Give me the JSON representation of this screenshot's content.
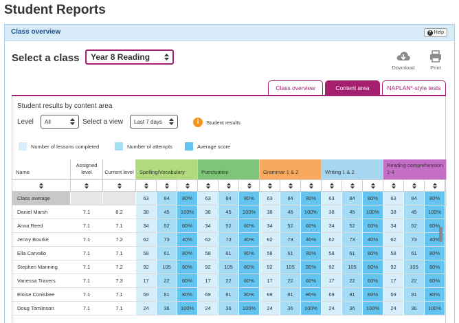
{
  "page": {
    "title": "Student Reports"
  },
  "panel": {
    "title": "Class overview",
    "help_label": "Help"
  },
  "class_picker": {
    "label": "Select a class",
    "value": "Year 8 Reading"
  },
  "tools": {
    "download_label": "Download",
    "print_label": "Print"
  },
  "tabs": [
    {
      "label": "Class overview",
      "active": false
    },
    {
      "label": "Content area",
      "active": true
    },
    {
      "label": "NAPLAN*-style tests",
      "active": false
    }
  ],
  "results": {
    "title": "Student results by content area",
    "level_label": "Level",
    "level_value": "All",
    "view_label": "Select a view",
    "view_value": "Last 7 days",
    "student_results_label": "Student results"
  },
  "legend": [
    {
      "label": "Number of lessons completed",
      "color": "#d6effb"
    },
    {
      "label": "Number of attempts",
      "color": "#a6dcf5"
    },
    {
      "label": "Average score",
      "color": "#63c4ef"
    }
  ],
  "colors": {
    "accent": "#a3206f",
    "spelling": "#b1da7f",
    "punctuation": "#7ec57a",
    "grammar": "#f7a95d",
    "writing": "#a8d7f2",
    "reading": "#c56ec7"
  },
  "table": {
    "columns": {
      "name": "Name",
      "assigned": "Assigned level",
      "current": "Current level"
    },
    "areas": [
      {
        "label": "Spelling/Vocabulary",
        "color": "#b1da7f"
      },
      {
        "label": "Punctuation",
        "color": "#7ec57a"
      },
      {
        "label": "Grammar 1 & 2",
        "color": "#f7a95d"
      },
      {
        "label": "Writing 1 & 2",
        "color": "#a8d7f2"
      },
      {
        "label": "Reading comprehension 1-4",
        "color": "#c56ec7"
      }
    ],
    "class_average": {
      "name": "Class average",
      "scores": [
        "63",
        "84",
        "80%",
        "63",
        "84",
        "80%",
        "63",
        "84",
        "80%",
        "63",
        "84",
        "80%",
        "63",
        "84",
        "80%"
      ]
    },
    "students": [
      {
        "name": "Daniel Marsh",
        "assigned": "7.1",
        "current": "8.2",
        "scores": [
          "38",
          "45",
          "100%",
          "38",
          "45",
          "100%",
          "38",
          "45",
          "100%",
          "38",
          "45",
          "100%",
          "38",
          "45",
          "100%"
        ]
      },
      {
        "name": "Anna Reed",
        "assigned": "7.1",
        "current": "7.1",
        "scores": [
          "34",
          "52",
          "60%",
          "34",
          "52",
          "60%",
          "34",
          "52",
          "60%",
          "34",
          "52",
          "60%",
          "34",
          "52",
          "60%"
        ]
      },
      {
        "name": "Jenny Bourke",
        "assigned": "7.1",
        "current": "7.2",
        "scores": [
          "62",
          "73",
          "40%",
          "62",
          "73",
          "40%",
          "62",
          "73",
          "40%",
          "62",
          "73",
          "40%",
          "62",
          "73",
          "40%"
        ]
      },
      {
        "name": "Ella Carvallo",
        "assigned": "7.1",
        "current": "7.1",
        "scores": [
          "58",
          "61",
          "80%",
          "58",
          "61",
          "80%",
          "58",
          "61",
          "80%",
          "58",
          "61",
          "80%",
          "58",
          "61",
          "80%"
        ]
      },
      {
        "name": "Stephen Manning",
        "assigned": "7.1",
        "current": "7.2",
        "scores": [
          "92",
          "105",
          "80%",
          "92",
          "105",
          "80%",
          "92",
          "105",
          "80%",
          "92",
          "105",
          "80%",
          "92",
          "105",
          "80%"
        ]
      },
      {
        "name": "Vanessa Travers",
        "assigned": "7.1",
        "current": "7.3",
        "scores": [
          "17",
          "22",
          "60%",
          "17",
          "22",
          "60%",
          "17",
          "22",
          "60%",
          "17",
          "22",
          "60%",
          "17",
          "22",
          "60%"
        ]
      },
      {
        "name": "Eloise Conisbee",
        "assigned": "7.1",
        "current": "7.1",
        "scores": [
          "69",
          "81",
          "80%",
          "69",
          "81",
          "80%",
          "69",
          "81",
          "80%",
          "69",
          "81",
          "80%",
          "69",
          "81",
          "80%"
        ]
      },
      {
        "name": "Doug Tomlinson",
        "assigned": "7.1",
        "current": "7.1",
        "scores": [
          "24",
          "36",
          "100%",
          "24",
          "36",
          "100%",
          "24",
          "36",
          "100%",
          "24",
          "36",
          "100%",
          "24",
          "36",
          "100%"
        ]
      }
    ]
  }
}
